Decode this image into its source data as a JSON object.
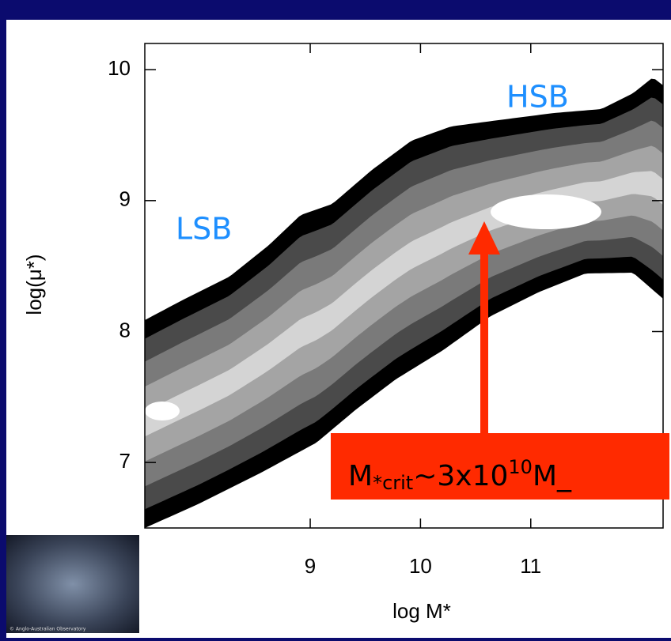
{
  "chart_data": {
    "type": "contour",
    "xlabel": "log M*",
    "ylabel": "log(μ*)",
    "xlim": [
      7.5,
      12.2
    ],
    "ylim": [
      6.5,
      10.2
    ],
    "xticks": [
      9,
      10,
      11
    ],
    "yticks": [
      7,
      8,
      9,
      10
    ],
    "annotations": {
      "lsb": "LSB",
      "hsb": "HSB",
      "critical_mass": {
        "base": "M",
        "subscript": "*crit",
        "text": "~3x10",
        "superscript": "10",
        "tail": "M_"
      }
    }
  },
  "image_credit": "© Anglo-Australian Observatory"
}
